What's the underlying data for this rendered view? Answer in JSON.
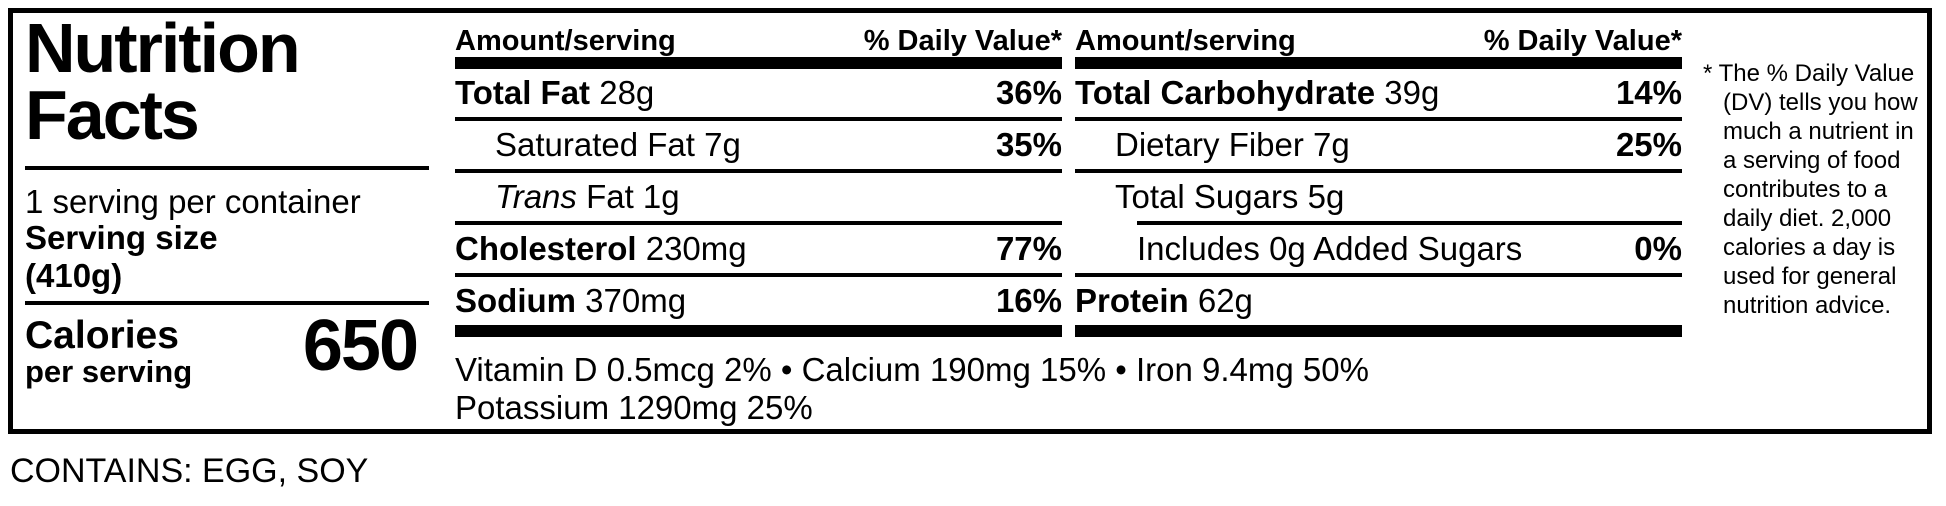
{
  "label": {
    "title_line1": "Nutrition",
    "title_line2": "Facts",
    "servings_per_container": "1 serving per container",
    "serving_size_label": "Serving size",
    "serving_size_value": "(410g)",
    "calories_label": "Calories",
    "calories_sublabel": "per serving",
    "calories_value": "650",
    "columns": [
      {
        "header": {
          "amount": "Amount/serving",
          "daily_value": "% Daily Value*"
        },
        "rows": [
          {
            "bold": "Total Fat",
            "regular": "28g",
            "dv": "36%",
            "indent": 0,
            "rule_below": "full"
          },
          {
            "regular": "Saturated Fat 7g",
            "dv": "35%",
            "indent": 1,
            "rule_below": "full"
          },
          {
            "italic": "Trans",
            "regular": "Fat 1g",
            "dv": "",
            "indent": 1,
            "rule_below": "full"
          },
          {
            "bold": "Cholesterol",
            "regular": "230mg",
            "dv": "77%",
            "indent": 0,
            "rule_below": "full"
          },
          {
            "bold": "Sodium",
            "regular": "370mg",
            "dv": "16%",
            "indent": 0,
            "rule_below": "thick"
          }
        ]
      },
      {
        "header": {
          "amount": "Amount/serving",
          "daily_value": "% Daily Value*"
        },
        "rows": [
          {
            "bold": "Total Carbohydrate",
            "regular": "39g",
            "dv": "14%",
            "indent": 0,
            "rule_below": "full"
          },
          {
            "regular": "Dietary Fiber 7g",
            "dv": "25%",
            "indent": 1,
            "rule_below": "full"
          },
          {
            "regular": "Total Sugars 5g",
            "dv": "",
            "indent": 1,
            "rule_below": "indent"
          },
          {
            "regular": "Includes 0g Added Sugars",
            "dv": "0%",
            "indent": 2,
            "rule_below": "full"
          },
          {
            "bold": "Protein",
            "regular": "62g",
            "dv": "",
            "indent": 0,
            "rule_below": "thick"
          }
        ]
      }
    ],
    "vitamins_line1": "Vitamin D 0.5mcg 2% • Calcium 190mg 15% • Iron 9.4mg 50%",
    "vitamins_line2": "Potassium 1290mg 25%",
    "footnote": "* The % Daily Value (DV) tells you how much a nutrient in a serving of food contributes to a daily diet. 2,000 calories a day is used for general nutrition advice."
  },
  "allergen_statement": "CONTAINS: EGG, SOY",
  "colors": {
    "ink": "#000000",
    "background": "#ffffff"
  }
}
